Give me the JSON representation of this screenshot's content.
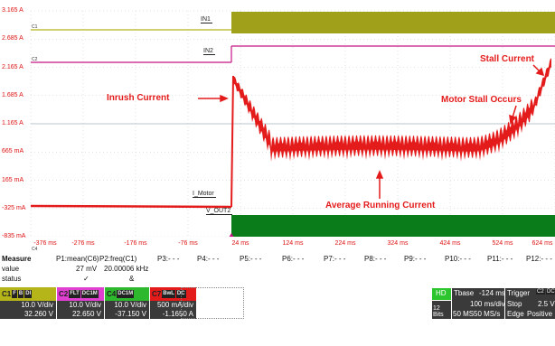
{
  "scope": {
    "y_labels": [
      "3.165 A",
      "2.685 A",
      "2.165 A",
      "1.685 A",
      "1.165 A",
      "665 mA",
      "165 mA",
      "-325 mA",
      "-835 mA"
    ],
    "x_labels": [
      "-376 ms",
      "-276 ms",
      "-176 ms",
      "-76 ms",
      "24 ms",
      "124 ms",
      "224 ms",
      "324 ms",
      "424 ms",
      "524 ms",
      "624 ms"
    ],
    "channel_markers": [
      "C1",
      "C2",
      "C4"
    ],
    "trace_tags": {
      "in1": "IN1",
      "in2": "IN2",
      "imotor": "I_Motor",
      "vout2": "V_OUT2"
    },
    "annotations": {
      "inrush": "Inrush Current",
      "stall_current": "Stall Current",
      "motor_stall": "Motor Stall Occurs",
      "average": "Average Running Current"
    },
    "colors": {
      "c1": "#b5b51a",
      "c2": "#c71585",
      "c4": "#0a7d1a",
      "c7": "#e41b1b",
      "grid": "#b8c4cf"
    }
  },
  "measure": {
    "title": "Measure",
    "params": [
      "P1:mean(C6)",
      "P2:freq(C1)",
      "P3:- - -",
      "P4:- - -",
      "P5:- - -",
      "P6:- - -",
      "P7:- - -",
      "P8:- - -",
      "P9:- - -",
      "P10:- - -",
      "P11:- - -",
      "P12:- - -"
    ],
    "value_label": "value",
    "status_label": "status",
    "values": [
      "27 mV",
      "20.00006 kHz"
    ],
    "status": [
      "✓",
      "&"
    ]
  },
  "descriptors": [
    {
      "ch": "C1",
      "flags": [
        "F",
        "B",
        "DI"
      ],
      "vdiv": "10.0 V/div",
      "offset": "32.260 V",
      "color": "#b5b51a"
    },
    {
      "ch": "C2",
      "flags": [
        "FLT",
        "DC1M"
      ],
      "vdiv": "10.0 V/div",
      "offset": "22.650 V",
      "color": "#e040d0"
    },
    {
      "ch": "C4",
      "flags": [
        "DC1M"
      ],
      "vdiv": "10.0 V/div",
      "offset": "-37.150 V",
      "color": "#2eb82e"
    },
    {
      "ch": "C7",
      "flags": [
        "BwL",
        "DC"
      ],
      "vdiv": "500 mA/div",
      "offset": "-1.1650 A",
      "color": "#e41b1b"
    }
  ],
  "timebase": {
    "hd": "HD",
    "bits": "12 Bits",
    "tbase_label": "Tbase",
    "tbase_value": "-124 ms",
    "tdiv": "100 ms/div",
    "samples": "50 MS",
    "rate": "50 MS/s",
    "trigger_label": "Trigger",
    "trigger_flags": [
      "C2",
      "DC"
    ],
    "trigger_mode": "Stop",
    "trigger_level": "2.5 V",
    "trigger_type": "Edge",
    "trigger_slope": "Positive"
  }
}
